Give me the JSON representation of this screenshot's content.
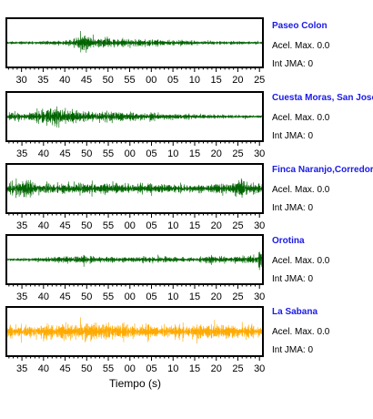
{
  "chart_data": {
    "type": "line",
    "xlabel": "Tiempo (s)",
    "panels": [
      {
        "station": "Paseo Colon",
        "accel_label": "Acel. Max.",
        "accel_value": "0.0",
        "jma_label": "Int JMA:",
        "jma_value": "0",
        "color": "#006400",
        "ticks": [
          "30",
          "35",
          "40",
          "45",
          "50",
          "55",
          "00",
          "05",
          "10",
          "15",
          "20",
          "25"
        ],
        "tick_start": 30,
        "x_range": [
          26.5,
          85.8
        ],
        "seed": 11,
        "envelope": [
          [
            26.5,
            0.12
          ],
          [
            38,
            0.15
          ],
          [
            40,
            0.22
          ],
          [
            42,
            0.35
          ],
          [
            44,
            0.85
          ],
          [
            45,
            0.95
          ],
          [
            46,
            0.55
          ],
          [
            48,
            0.45
          ],
          [
            52,
            0.35
          ],
          [
            58,
            0.28
          ],
          [
            66,
            0.2
          ],
          [
            76,
            0.15
          ],
          [
            85.8,
            0.12
          ]
        ]
      },
      {
        "station": "Cuesta Moras, San Jose",
        "accel_label": "Acel. Max.",
        "accel_value": "0.0",
        "jma_label": "Int JMA:",
        "jma_value": "0",
        "color": "#006400",
        "ticks": [
          "35",
          "40",
          "45",
          "50",
          "55",
          "00",
          "05",
          "10",
          "15",
          "20",
          "25",
          "30"
        ],
        "tick_start": 35,
        "x_range": [
          31.4,
          90.8
        ],
        "seed": 23,
        "envelope": [
          [
            31.4,
            0.3
          ],
          [
            37,
            0.38
          ],
          [
            40,
            0.55
          ],
          [
            43,
            0.92
          ],
          [
            45,
            0.55
          ],
          [
            50,
            0.45
          ],
          [
            55,
            0.5
          ],
          [
            60,
            0.35
          ],
          [
            70,
            0.28
          ],
          [
            80,
            0.18
          ],
          [
            90.8,
            0.12
          ]
        ]
      },
      {
        "station": "Finca Naranjo,Corredores",
        "accel_label": "Acel. Max.",
        "accel_value": "0.0",
        "jma_label": "Int JMA:",
        "jma_value": "0",
        "color": "#006400",
        "ticks": [
          "35",
          "40",
          "45",
          "50",
          "55",
          "00",
          "05",
          "10",
          "15",
          "20",
          "25",
          "30"
        ],
        "tick_start": 35,
        "x_range": [
          31.4,
          90.8
        ],
        "seed": 37,
        "envelope": [
          [
            31.4,
            0.45
          ],
          [
            34,
            0.7
          ],
          [
            36,
            0.95
          ],
          [
            38,
            0.5
          ],
          [
            42,
            0.55
          ],
          [
            48,
            0.5
          ],
          [
            55,
            0.45
          ],
          [
            62,
            0.4
          ],
          [
            70,
            0.38
          ],
          [
            78,
            0.35
          ],
          [
            84,
            0.55
          ],
          [
            85.5,
            0.9
          ],
          [
            87,
            0.5
          ],
          [
            90.8,
            0.4
          ]
        ]
      },
      {
        "station": "Orotina",
        "accel_label": "Acel. Max.",
        "accel_value": "0.0",
        "jma_label": "Int JMA:",
        "jma_value": "0",
        "color": "#006400",
        "ticks": [
          "35",
          "40",
          "45",
          "50",
          "55",
          "00",
          "05",
          "10",
          "15",
          "20",
          "25",
          "30"
        ],
        "tick_start": 35,
        "x_range": [
          31.4,
          90.8
        ],
        "seed": 51,
        "envelope": [
          [
            31.4,
            0.1
          ],
          [
            38,
            0.14
          ],
          [
            43,
            0.25
          ],
          [
            45,
            0.35
          ],
          [
            50,
            0.3
          ],
          [
            58,
            0.22
          ],
          [
            64,
            0.3
          ],
          [
            70,
            0.22
          ],
          [
            78,
            0.25
          ],
          [
            86,
            0.3
          ],
          [
            89.5,
            0.4
          ],
          [
            90.2,
            0.95
          ],
          [
            90.8,
            0.9
          ]
        ]
      },
      {
        "station": "La Sabana",
        "accel_label": "Acel. Max.",
        "accel_value": "0.0",
        "jma_label": "Int JMA:",
        "jma_value": "0",
        "color": "#ffaa00",
        "ticks": [
          "35",
          "40",
          "45",
          "50",
          "55",
          "00",
          "05",
          "10",
          "15",
          "20",
          "25",
          "30"
        ],
        "tick_start": 35,
        "x_range": [
          31.4,
          90.8
        ],
        "seed": 67,
        "envelope": [
          [
            31.4,
            0.55
          ],
          [
            40,
            0.65
          ],
          [
            48,
            0.85
          ],
          [
            55,
            0.7
          ],
          [
            62,
            0.6
          ],
          [
            70,
            0.6
          ],
          [
            80,
            0.65
          ],
          [
            90.8,
            0.55
          ]
        ]
      }
    ]
  }
}
